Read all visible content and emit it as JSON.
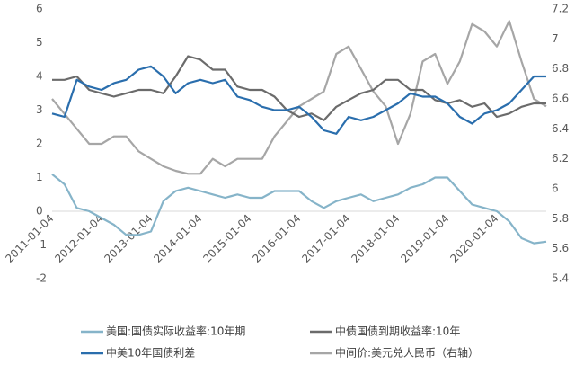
{
  "chart_data": {
    "type": "line",
    "categories": [
      "2011-01-04",
      null,
      null,
      null,
      "2012-01-04",
      null,
      null,
      null,
      "2013-01-04",
      null,
      null,
      null,
      "2014-01-04",
      null,
      null,
      null,
      "2015-01-04",
      null,
      null,
      null,
      "2016-01-04",
      null,
      null,
      null,
      "2017-01-04",
      null,
      null,
      null,
      "2018-01-04",
      null,
      null,
      null,
      "2019-01-04",
      null,
      null,
      null,
      "2020-01-04",
      null,
      null,
      null,
      null
    ],
    "series": [
      {
        "name": "美国:国债实际收益率:10年期",
        "color": "#86b4c9",
        "values": [
          1.1,
          0.8,
          0.1,
          0.0,
          -0.2,
          -0.4,
          -0.7,
          -0.7,
          -0.6,
          0.3,
          0.6,
          0.7,
          0.6,
          0.5,
          0.4,
          0.5,
          0.4,
          0.4,
          0.6,
          0.6,
          0.6,
          0.3,
          0.1,
          0.3,
          0.4,
          0.5,
          0.3,
          0.4,
          0.5,
          0.7,
          0.8,
          1.0,
          1.0,
          0.6,
          0.2,
          0.1,
          0.0,
          -0.3,
          -0.8,
          -0.95,
          -0.9
        ]
      },
      {
        "name": "中债国债到期收益率:10年",
        "color": "#6b6b6b",
        "values": [
          3.9,
          3.9,
          4.0,
          3.6,
          3.5,
          3.4,
          3.5,
          3.6,
          3.6,
          3.5,
          4.0,
          4.6,
          4.5,
          4.2,
          4.2,
          3.7,
          3.6,
          3.6,
          3.4,
          3.0,
          2.8,
          2.9,
          2.7,
          3.1,
          3.3,
          3.5,
          3.6,
          3.9,
          3.9,
          3.6,
          3.6,
          3.3,
          3.2,
          3.3,
          3.1,
          3.2,
          2.8,
          2.9,
          3.1,
          3.2,
          3.2
        ]
      },
      {
        "name": "中美10年国债利差",
        "color": "#2a6ead",
        "values": [
          2.9,
          2.8,
          3.9,
          3.7,
          3.6,
          3.8,
          3.9,
          4.2,
          4.3,
          4.0,
          3.5,
          3.8,
          3.9,
          3.8,
          3.9,
          3.4,
          3.3,
          3.1,
          3.0,
          3.0,
          3.1,
          2.8,
          2.4,
          2.3,
          2.8,
          2.7,
          2.8,
          3.0,
          3.2,
          3.5,
          3.4,
          3.4,
          3.2,
          2.8,
          2.6,
          2.9,
          3.0,
          3.2,
          3.6,
          4.0,
          4.0
        ]
      },
      {
        "name": "中间价:美元兑人民币（右轴）",
        "color": "#a6a6a6",
        "axis": "y2",
        "values": [
          6.6,
          6.5,
          6.4,
          6.3,
          6.3,
          6.35,
          6.35,
          6.25,
          6.2,
          6.15,
          6.12,
          6.1,
          6.1,
          6.2,
          6.15,
          6.2,
          6.2,
          6.2,
          6.35,
          6.45,
          6.55,
          6.6,
          6.65,
          6.9,
          6.95,
          6.8,
          6.65,
          6.55,
          6.3,
          6.5,
          6.85,
          6.9,
          6.7,
          6.85,
          7.1,
          7.05,
          6.95,
          7.12,
          6.85,
          6.6,
          6.55
        ]
      }
    ],
    "ylim": [
      -2,
      6
    ],
    "yticks": [
      -2,
      -1,
      0,
      1,
      2,
      3,
      4,
      5,
      6
    ],
    "y2lim": [
      5.4,
      7.2
    ],
    "y2ticks": [
      5.4,
      5.6,
      5.8,
      6,
      6.2,
      6.4,
      6.6,
      6.8,
      7,
      7.2
    ],
    "grid": false,
    "legend": "bottom"
  }
}
